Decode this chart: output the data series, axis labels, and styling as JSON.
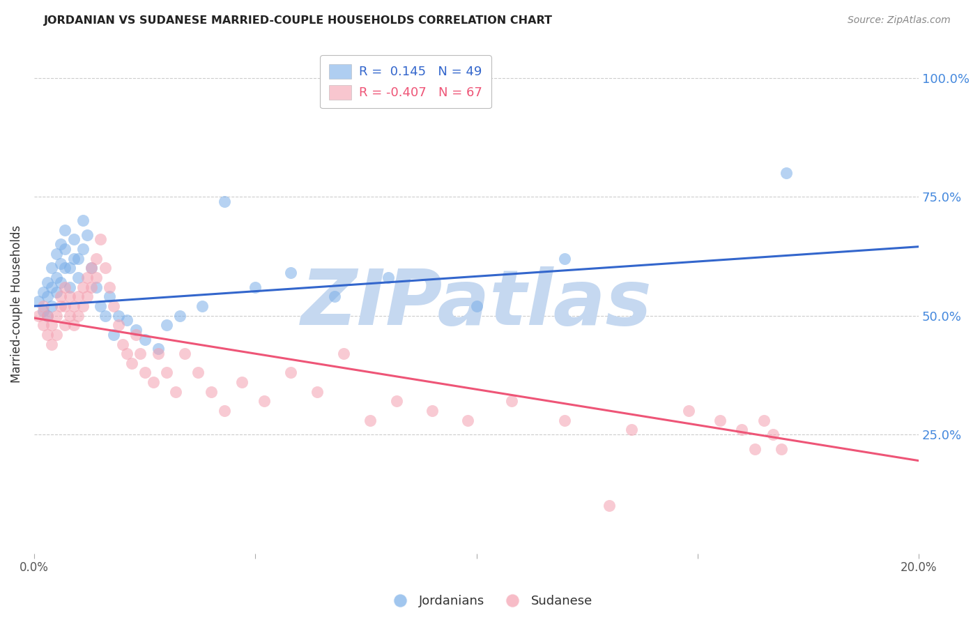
{
  "title": "JORDANIAN VS SUDANESE MARRIED-COUPLE HOUSEHOLDS CORRELATION CHART",
  "source": "Source: ZipAtlas.com",
  "ylabel": "Married-couple Households",
  "yticks": [
    "100.0%",
    "75.0%",
    "50.0%",
    "25.0%"
  ],
  "ytick_vals": [
    1.0,
    0.75,
    0.5,
    0.25
  ],
  "xlim": [
    0.0,
    0.2
  ],
  "ylim": [
    0.0,
    1.05
  ],
  "legend_r1": "R =  0.145   N = 49",
  "legend_r2": "R = -0.407   N = 67",
  "background_color": "#ffffff",
  "grid_color": "#cccccc",
  "blue_color": "#7aaee8",
  "pink_color": "#f4a0b0",
  "line_blue": "#3366cc",
  "line_pink": "#ee5577",
  "watermark_color": "#c5d8f0",
  "jordanians_x": [
    0.001,
    0.002,
    0.002,
    0.003,
    0.003,
    0.003,
    0.004,
    0.004,
    0.004,
    0.005,
    0.005,
    0.005,
    0.006,
    0.006,
    0.006,
    0.007,
    0.007,
    0.007,
    0.008,
    0.008,
    0.009,
    0.009,
    0.01,
    0.01,
    0.011,
    0.011,
    0.012,
    0.013,
    0.014,
    0.015,
    0.016,
    0.017,
    0.018,
    0.019,
    0.021,
    0.023,
    0.025,
    0.028,
    0.03,
    0.033,
    0.038,
    0.043,
    0.05,
    0.058,
    0.068,
    0.08,
    0.1,
    0.12,
    0.17
  ],
  "jordanians_y": [
    0.53,
    0.51,
    0.55,
    0.5,
    0.54,
    0.57,
    0.52,
    0.56,
    0.6,
    0.55,
    0.58,
    0.63,
    0.57,
    0.61,
    0.65,
    0.6,
    0.64,
    0.68,
    0.56,
    0.6,
    0.62,
    0.66,
    0.58,
    0.62,
    0.64,
    0.7,
    0.67,
    0.6,
    0.56,
    0.52,
    0.5,
    0.54,
    0.46,
    0.5,
    0.49,
    0.47,
    0.45,
    0.43,
    0.48,
    0.5,
    0.52,
    0.74,
    0.56,
    0.59,
    0.54,
    0.58,
    0.52,
    0.62,
    0.8
  ],
  "sudanese_x": [
    0.001,
    0.002,
    0.002,
    0.003,
    0.003,
    0.004,
    0.004,
    0.005,
    0.005,
    0.006,
    0.006,
    0.007,
    0.007,
    0.007,
    0.008,
    0.008,
    0.009,
    0.009,
    0.01,
    0.01,
    0.011,
    0.011,
    0.012,
    0.012,
    0.013,
    0.013,
    0.014,
    0.014,
    0.015,
    0.016,
    0.017,
    0.018,
    0.019,
    0.02,
    0.021,
    0.022,
    0.023,
    0.024,
    0.025,
    0.027,
    0.028,
    0.03,
    0.032,
    0.034,
    0.037,
    0.04,
    0.043,
    0.047,
    0.052,
    0.058,
    0.064,
    0.07,
    0.076,
    0.082,
    0.09,
    0.098,
    0.108,
    0.12,
    0.135,
    0.148,
    0.155,
    0.16,
    0.163,
    0.165,
    0.167,
    0.169,
    0.13
  ],
  "sudanese_y": [
    0.5,
    0.48,
    0.52,
    0.46,
    0.5,
    0.44,
    0.48,
    0.46,
    0.5,
    0.52,
    0.54,
    0.48,
    0.52,
    0.56,
    0.5,
    0.54,
    0.48,
    0.52,
    0.5,
    0.54,
    0.52,
    0.56,
    0.54,
    0.58,
    0.56,
    0.6,
    0.58,
    0.62,
    0.66,
    0.6,
    0.56,
    0.52,
    0.48,
    0.44,
    0.42,
    0.4,
    0.46,
    0.42,
    0.38,
    0.36,
    0.42,
    0.38,
    0.34,
    0.42,
    0.38,
    0.34,
    0.3,
    0.36,
    0.32,
    0.38,
    0.34,
    0.42,
    0.28,
    0.32,
    0.3,
    0.28,
    0.32,
    0.28,
    0.26,
    0.3,
    0.28,
    0.26,
    0.22,
    0.28,
    0.25,
    0.22,
    0.1
  ],
  "blue_line_y0": 0.52,
  "blue_line_y1": 0.645,
  "pink_line_y0": 0.495,
  "pink_line_y1": 0.195
}
